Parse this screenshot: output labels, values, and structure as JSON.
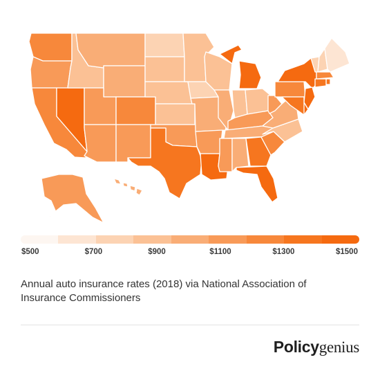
{
  "map": {
    "colors": {
      "bin0": "#fdf6f1",
      "bin1": "#fde5d3",
      "bin2": "#fcd3b3",
      "bin3": "#fbc195",
      "bin4": "#f9ad76",
      "bin5": "#f89a58",
      "bin6": "#f7883b",
      "bin7": "#f6761f",
      "bin8": "#f56a10",
      "outline": "#ffffff"
    },
    "states": {
      "WA": 6,
      "OR": 5,
      "CA": 6,
      "NV": 8,
      "ID": 3,
      "MT": 4,
      "WY": 4,
      "UT": 5,
      "AZ": 5,
      "CO": 6,
      "NM": 5,
      "ND": 2,
      "SD": 3,
      "NE": 3,
      "KS": 3,
      "OK": 5,
      "TX": 7,
      "MN": 3,
      "IA": 2,
      "MO": 4,
      "AR": 5,
      "LA": 8,
      "WI": 3,
      "IL": 4,
      "MI": 8,
      "IN": 3,
      "OH": 3,
      "KY": 5,
      "TN": 4,
      "MS": 5,
      "AL": 4,
      "GA": 7,
      "FL": 8,
      "SC": 6,
      "NC": 3,
      "VA": 4,
      "WV": 5,
      "PA": 6,
      "NY": 8,
      "VT": 2,
      "NH": 2,
      "ME": 1,
      "MA": 6,
      "RI": 7,
      "CT": 7,
      "NJ": 8,
      "DE": 8,
      "MD": 7,
      "AK": 5,
      "HI": 4
    }
  },
  "legend": {
    "bins": 9,
    "labels": [
      {
        "text": "$500",
        "value": 500
      },
      {
        "text": "$700",
        "value": 700
      },
      {
        "text": "$900",
        "value": 900
      },
      {
        "text": "$1100",
        "value": 1100
      },
      {
        "text": "$1300",
        "value": 1300
      },
      {
        "text": "$1500",
        "value": 1500
      }
    ]
  },
  "caption": "Annual auto insurance rates (2018) via National Association of Insurance Commissioners",
  "brand": {
    "part1": "Policy",
    "part2": "genius"
  }
}
